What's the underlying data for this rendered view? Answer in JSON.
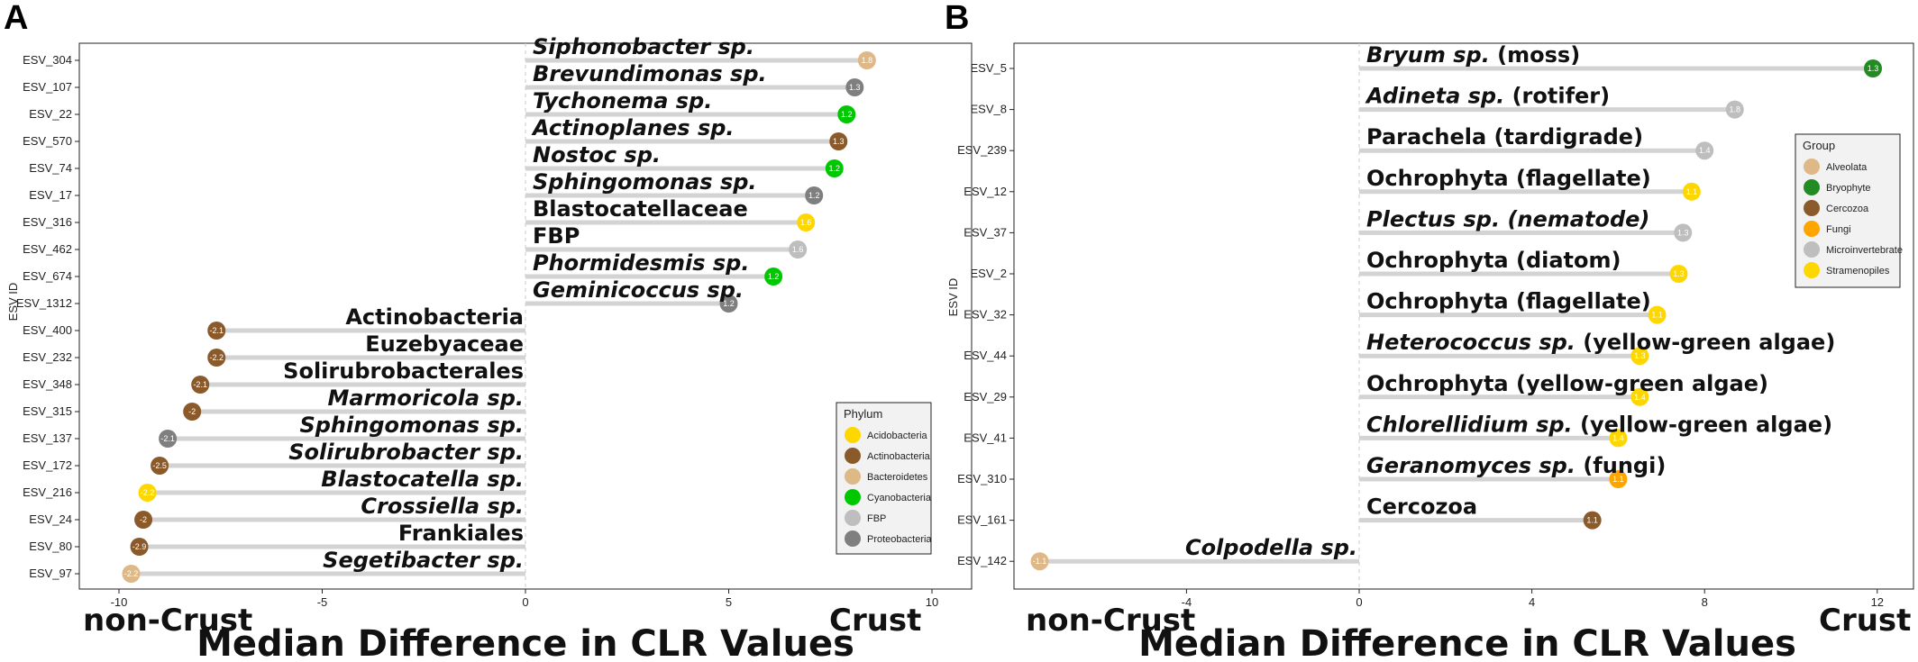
{
  "chart_data": [
    {
      "panel": "A",
      "type": "lollipop",
      "ylabel": "ESV ID",
      "xlabel": "Median Difference in CLR Values",
      "left_label": "non-Crust",
      "right_label": "Crust",
      "xlim": [
        -11,
        11
      ],
      "xticks": [
        -10,
        -5,
        0,
        5,
        10
      ],
      "legend_title": "Phylum",
      "legend_position": "bottom-right",
      "legend": [
        {
          "name": "Acidobacteria",
          "color": "#FFD700"
        },
        {
          "name": "Actinobacteria",
          "color": "#8B5A2B"
        },
        {
          "name": "Bacteroidetes",
          "color": "#DEB887"
        },
        {
          "name": "Cyanobacteria",
          "color": "#00C800"
        },
        {
          "name": "FBP",
          "color": "#BEBEBE"
        },
        {
          "name": "Proteobacteria",
          "color": "#7F7F7F"
        }
      ],
      "points": [
        {
          "esv": "ESV_304",
          "value": 8.4,
          "taxon": "Siphonobacter sp.",
          "italic": true,
          "label": "1.8",
          "color": "#DEB887"
        },
        {
          "esv": "ESV_107",
          "value": 8.1,
          "taxon": "Brevundimonas sp.",
          "italic": true,
          "label": "1.3",
          "color": "#7F7F7F"
        },
        {
          "esv": "ESV_22",
          "value": 7.9,
          "taxon": "Tychonema sp.",
          "italic": true,
          "label": "1.2",
          "color": "#00C800"
        },
        {
          "esv": "ESV_570",
          "value": 7.7,
          "taxon": "Actinoplanes sp.",
          "italic": true,
          "label": "1.3",
          "color": "#8B5A2B"
        },
        {
          "esv": "ESV_74",
          "value": 7.6,
          "taxon": "Nostoc sp.",
          "italic": true,
          "label": "1.2",
          "color": "#00C800"
        },
        {
          "esv": "ESV_17",
          "value": 7.1,
          "taxon": "Sphingomonas sp.",
          "italic": true,
          "label": "1.2",
          "color": "#7F7F7F"
        },
        {
          "esv": "ESV_316",
          "value": 6.9,
          "taxon": "Blastocatellaceae",
          "italic": false,
          "label": "1.6",
          "color": "#FFD700"
        },
        {
          "esv": "ESV_462",
          "value": 6.7,
          "taxon": "FBP",
          "italic": false,
          "label": "1.6",
          "color": "#BEBEBE"
        },
        {
          "esv": "ESV_674",
          "value": 6.1,
          "taxon": "Phormidesmis sp.",
          "italic": true,
          "label": "1.2",
          "color": "#00C800"
        },
        {
          "esv": "ESV_1312",
          "value": 5.0,
          "taxon": "Geminicoccus sp.",
          "italic": true,
          "label": "1.2",
          "color": "#7F7F7F"
        },
        {
          "esv": "ESV_400",
          "value": -7.6,
          "taxon": "Actinobacteria",
          "italic": false,
          "label": "-2.1",
          "color": "#8B5A2B"
        },
        {
          "esv": "ESV_232",
          "value": -7.6,
          "taxon": "Euzebyaceae",
          "italic": false,
          "label": "-2.2",
          "color": "#8B5A2B"
        },
        {
          "esv": "ESV_348",
          "value": -8.0,
          "taxon": "Solirubrobacterales",
          "italic": false,
          "label": "-2.1",
          "color": "#8B5A2B"
        },
        {
          "esv": "ESV_315",
          "value": -8.2,
          "taxon": "Marmoricola sp.",
          "italic": true,
          "label": "-2",
          "color": "#8B5A2B"
        },
        {
          "esv": "ESV_137",
          "value": -8.8,
          "taxon": "Sphingomonas sp.",
          "italic": true,
          "label": "-2.1",
          "color": "#7F7F7F"
        },
        {
          "esv": "ESV_172",
          "value": -9.0,
          "taxon": "Solirubrobacter sp.",
          "italic": true,
          "label": "-2.5",
          "color": "#8B5A2B"
        },
        {
          "esv": "ESV_216",
          "value": -9.3,
          "taxon": "Blastocatella sp.",
          "italic": true,
          "label": "-2.2",
          "color": "#FFD700"
        },
        {
          "esv": "ESV_24",
          "value": -9.4,
          "taxon": "Crossiella sp.",
          "italic": true,
          "label": "-2",
          "color": "#8B5A2B"
        },
        {
          "esv": "ESV_80",
          "value": -9.5,
          "taxon": "Frankiales",
          "italic": false,
          "label": "-2.9",
          "color": "#8B5A2B"
        },
        {
          "esv": "ESV_97",
          "value": -9.7,
          "taxon": "Segetibacter sp.",
          "italic": true,
          "label": "-2.2",
          "color": "#DEB887"
        }
      ]
    },
    {
      "panel": "B",
      "type": "lollipop",
      "ylabel": "ESV ID",
      "xlabel": "Median Difference in CLR Values",
      "left_label": "non-Crust",
      "right_label": "Crust",
      "xlim": [
        -8,
        12.8
      ],
      "xticks": [
        -4,
        0,
        4,
        8,
        12
      ],
      "legend_title": "Group",
      "legend_position": "top-right",
      "legend": [
        {
          "name": "Alveolata",
          "color": "#DEB887"
        },
        {
          "name": "Bryophyte",
          "color": "#228B22"
        },
        {
          "name": "Cercozoa",
          "color": "#8B5A2B"
        },
        {
          "name": "Fungi",
          "color": "#FFA500"
        },
        {
          "name": "Microinvertebrate",
          "color": "#BEBEBE"
        },
        {
          "name": "Stramenopiles",
          "color": "#FFD700"
        }
      ],
      "points": [
        {
          "esv": "ESV_5",
          "value": 11.9,
          "taxa": [
            {
              "t": "Bryum sp.",
              "i": true
            },
            {
              "t": " (moss)",
              "i": false
            }
          ],
          "label": "1.3",
          "color": "#228B22"
        },
        {
          "esv": "ESV_8",
          "value": 8.7,
          "taxa": [
            {
              "t": "Adineta sp.",
              "i": true
            },
            {
              "t": " (rotifer)",
              "i": false
            }
          ],
          "label": "1.8",
          "color": "#BEBEBE"
        },
        {
          "esv": "ESV_239",
          "value": 8.0,
          "taxa": [
            {
              "t": "Parachela (tardigrade)",
              "i": false
            }
          ],
          "label": "1.4",
          "color": "#BEBEBE"
        },
        {
          "esv": "ESV_12",
          "value": 7.7,
          "taxa": [
            {
              "t": "Ochrophyta (flagellate)",
              "i": false
            }
          ],
          "label": "1.1",
          "color": "#FFD700"
        },
        {
          "esv": "ESV_37",
          "value": 7.5,
          "taxa": [
            {
              "t": "Plectus sp. (nematode)",
              "i": true
            }
          ],
          "label": "1.3",
          "color": "#BEBEBE"
        },
        {
          "esv": "ESV_2",
          "value": 7.4,
          "taxa": [
            {
              "t": "Ochrophyta (diatom)",
              "i": false
            }
          ],
          "label": "1.3",
          "color": "#FFD700"
        },
        {
          "esv": "ESV_32",
          "value": 6.9,
          "taxa": [
            {
              "t": "Ochrophyta (flagellate)",
              "i": false
            }
          ],
          "label": "1.1",
          "color": "#FFD700"
        },
        {
          "esv": "ESV_44",
          "value": 6.5,
          "taxa": [
            {
              "t": "Heterococcus sp.",
              "i": true
            },
            {
              "t": " (yellow-green algae)",
              "i": false
            }
          ],
          "label": "1.3",
          "color": "#FFD700"
        },
        {
          "esv": "ESV_29",
          "value": 6.5,
          "taxa": [
            {
              "t": "Ochrophyta (yellow-green algae)",
              "i": false
            }
          ],
          "label": "1.4",
          "color": "#FFD700"
        },
        {
          "esv": "ESV_41",
          "value": 6.0,
          "taxa": [
            {
              "t": "Chlorellidium sp.",
              "i": true
            },
            {
              "t": " (yellow-green algae)",
              "i": false
            }
          ],
          "label": "1.4",
          "color": "#FFD700"
        },
        {
          "esv": "ESV_310",
          "value": 6.0,
          "taxa": [
            {
              "t": "Geranomyces sp.",
              "i": true
            },
            {
              "t": " (fungi)",
              "i": false
            }
          ],
          "label": "1.1",
          "color": "#FFA500"
        },
        {
          "esv": "ESV_161",
          "value": 5.4,
          "taxa": [
            {
              "t": "Cercozoa",
              "i": false
            }
          ],
          "label": "1.1",
          "color": "#8B5A2B"
        },
        {
          "esv": "ESV_142",
          "value": -7.4,
          "taxa": [
            {
              "t": "Colpodella sp.",
              "i": true
            }
          ],
          "label": "-1.1",
          "color": "#DEB887"
        }
      ]
    }
  ],
  "panel_labels": {
    "a": "A",
    "b": "B"
  }
}
